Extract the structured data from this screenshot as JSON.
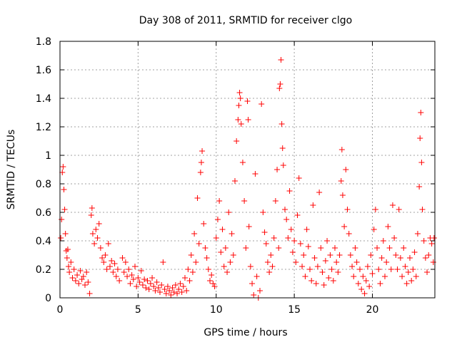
{
  "chart_data": {
    "type": "scatter",
    "title": "Day 308 of 2011, SRMTID for receiver clgo",
    "xlabel": "GPS time / hours",
    "ylabel": "SRMTID / TECUs",
    "xlim": [
      0,
      24
    ],
    "ylim": [
      0,
      1.8
    ],
    "xticks": [
      0,
      5,
      10,
      15,
      20
    ],
    "yticks": [
      0,
      0.2,
      0.4,
      0.6,
      0.8,
      1,
      1.2,
      1.4,
      1.6,
      1.8
    ],
    "xtick_labels": [
      "0",
      "5",
      "10",
      "15",
      "20"
    ],
    "ytick_labels": [
      "0",
      "0.2",
      "0.4",
      "0.6",
      "0.8",
      "1",
      "1.2",
      "1.4",
      "1.6",
      "1.8"
    ],
    "grid": true,
    "marker": "+",
    "series_color": "#ff0000",
    "series": [
      {
        "name": "SRMTID",
        "points": [
          [
            0.05,
            0.42
          ],
          [
            0.1,
            0.55
          ],
          [
            0.15,
            0.88
          ],
          [
            0.2,
            0.92
          ],
          [
            0.25,
            0.76
          ],
          [
            0.3,
            0.62
          ],
          [
            0.35,
            0.45
          ],
          [
            0.4,
            0.33
          ],
          [
            0.45,
            0.28
          ],
          [
            0.5,
            0.34
          ],
          [
            0.55,
            0.22
          ],
          [
            0.6,
            0.18
          ],
          [
            0.7,
            0.25
          ],
          [
            0.8,
            0.14
          ],
          [
            0.9,
            0.2
          ],
          [
            1.0,
            0.12
          ],
          [
            1.1,
            0.16
          ],
          [
            1.2,
            0.1
          ],
          [
            1.3,
            0.19
          ],
          [
            1.4,
            0.13
          ],
          [
            1.5,
            0.15
          ],
          [
            1.6,
            0.09
          ],
          [
            1.7,
            0.18
          ],
          [
            1.8,
            0.11
          ],
          [
            1.9,
            0.03
          ],
          [
            2.0,
            0.58
          ],
          [
            2.05,
            0.63
          ],
          [
            2.1,
            0.45
          ],
          [
            2.2,
            0.38
          ],
          [
            2.3,
            0.48
          ],
          [
            2.4,
            0.42
          ],
          [
            2.5,
            0.52
          ],
          [
            2.6,
            0.35
          ],
          [
            2.7,
            0.28
          ],
          [
            2.8,
            0.25
          ],
          [
            2.9,
            0.3
          ],
          [
            3.0,
            0.2
          ],
          [
            3.1,
            0.38
          ],
          [
            3.2,
            0.22
          ],
          [
            3.3,
            0.26
          ],
          [
            3.4,
            0.18
          ],
          [
            3.5,
            0.24
          ],
          [
            3.6,
            0.15
          ],
          [
            3.7,
            0.2
          ],
          [
            3.8,
            0.12
          ],
          [
            4.0,
            0.28
          ],
          [
            4.1,
            0.18
          ],
          [
            4.2,
            0.25
          ],
          [
            4.3,
            0.15
          ],
          [
            4.4,
            0.2
          ],
          [
            4.5,
            0.1
          ],
          [
            4.6,
            0.16
          ],
          [
            4.7,
            0.13
          ],
          [
            4.8,
            0.22
          ],
          [
            4.9,
            0.08
          ],
          [
            5.0,
            0.14
          ],
          [
            5.1,
            0.11
          ],
          [
            5.2,
            0.19
          ],
          [
            5.3,
            0.09
          ],
          [
            5.4,
            0.13
          ],
          [
            5.5,
            0.07
          ],
          [
            5.6,
            0.12
          ],
          [
            5.7,
            0.06
          ],
          [
            5.8,
            0.1
          ],
          [
            5.9,
            0.14
          ],
          [
            6.0,
            0.08
          ],
          [
            6.1,
            0.05
          ],
          [
            6.2,
            0.11
          ],
          [
            6.3,
            0.07
          ],
          [
            6.4,
            0.04
          ],
          [
            6.5,
            0.09
          ],
          [
            6.6,
            0.25
          ],
          [
            6.7,
            0.06
          ],
          [
            6.8,
            0.03
          ],
          [
            6.9,
            0.08
          ],
          [
            7.0,
            0.05
          ],
          [
            7.1,
            0.02
          ],
          [
            7.2,
            0.07
          ],
          [
            7.3,
            0.04
          ],
          [
            7.4,
            0.09
          ],
          [
            7.5,
            0.03
          ],
          [
            7.6,
            0.06
          ],
          [
            7.7,
            0.1
          ],
          [
            7.8,
            0.04
          ],
          [
            7.9,
            0.08
          ],
          [
            8.0,
            0.14
          ],
          [
            8.1,
            0.05
          ],
          [
            8.2,
            0.2
          ],
          [
            8.3,
            0.12
          ],
          [
            8.4,
            0.3
          ],
          [
            8.5,
            0.18
          ],
          [
            8.6,
            0.45
          ],
          [
            8.7,
            0.25
          ],
          [
            8.8,
            0.7
          ],
          [
            8.9,
            0.38
          ],
          [
            9.0,
            0.88
          ],
          [
            9.05,
            0.95
          ],
          [
            9.1,
            1.03
          ],
          [
            9.2,
            0.52
          ],
          [
            9.3,
            0.35
          ],
          [
            9.4,
            0.28
          ],
          [
            9.5,
            0.2
          ],
          [
            9.6,
            0.12
          ],
          [
            9.7,
            0.16
          ],
          [
            9.8,
            0.1
          ],
          [
            9.9,
            0.08
          ],
          [
            10.0,
            0.42
          ],
          [
            10.1,
            0.55
          ],
          [
            10.2,
            0.68
          ],
          [
            10.3,
            0.32
          ],
          [
            10.4,
            0.48
          ],
          [
            10.5,
            0.22
          ],
          [
            10.6,
            0.35
          ],
          [
            10.7,
            0.18
          ],
          [
            10.8,
            0.6
          ],
          [
            10.9,
            0.25
          ],
          [
            11.0,
            0.45
          ],
          [
            11.1,
            0.3
          ],
          [
            11.2,
            0.82
          ],
          [
            11.3,
            1.1
          ],
          [
            11.4,
            1.25
          ],
          [
            11.45,
            1.35
          ],
          [
            11.5,
            1.44
          ],
          [
            11.55,
            1.4
          ],
          [
            11.6,
            1.22
          ],
          [
            11.7,
            0.95
          ],
          [
            11.8,
            0.68
          ],
          [
            11.9,
            0.35
          ],
          [
            12.0,
            1.38
          ],
          [
            12.05,
            1.25
          ],
          [
            12.1,
            0.5
          ],
          [
            12.2,
            0.22
          ],
          [
            12.3,
            0.1
          ],
          [
            12.4,
            0.02
          ],
          [
            12.5,
            0.87
          ],
          [
            12.6,
            0.15
          ],
          [
            12.7,
            0.0
          ],
          [
            12.8,
            0.05
          ],
          [
            12.9,
            1.36
          ],
          [
            13.0,
            0.6
          ],
          [
            13.1,
            0.46
          ],
          [
            13.2,
            0.38
          ],
          [
            13.3,
            0.25
          ],
          [
            13.4,
            0.18
          ],
          [
            13.5,
            0.3
          ],
          [
            13.6,
            0.22
          ],
          [
            13.7,
            0.42
          ],
          [
            13.8,
            0.68
          ],
          [
            13.9,
            0.9
          ],
          [
            14.0,
            0.35
          ],
          [
            14.05,
            1.47
          ],
          [
            14.1,
            1.5
          ],
          [
            14.15,
            1.67
          ],
          [
            14.2,
            1.22
          ],
          [
            14.25,
            1.05
          ],
          [
            14.3,
            0.93
          ],
          [
            14.4,
            0.62
          ],
          [
            14.5,
            0.55
          ],
          [
            14.6,
            0.42
          ],
          [
            14.7,
            0.75
          ],
          [
            14.8,
            0.48
          ],
          [
            14.9,
            0.32
          ],
          [
            15.0,
            0.4
          ],
          [
            15.1,
            0.25
          ],
          [
            15.2,
            0.58
          ],
          [
            15.3,
            0.84
          ],
          [
            15.4,
            0.38
          ],
          [
            15.5,
            0.22
          ],
          [
            15.6,
            0.3
          ],
          [
            15.7,
            0.15
          ],
          [
            15.8,
            0.48
          ],
          [
            15.9,
            0.36
          ],
          [
            16.0,
            0.2
          ],
          [
            16.1,
            0.12
          ],
          [
            16.2,
            0.65
          ],
          [
            16.3,
            0.28
          ],
          [
            16.4,
            0.1
          ],
          [
            16.5,
            0.22
          ],
          [
            16.6,
            0.74
          ],
          [
            16.7,
            0.35
          ],
          [
            16.8,
            0.18
          ],
          [
            16.9,
            0.09
          ],
          [
            17.0,
            0.26
          ],
          [
            17.1,
            0.4
          ],
          [
            17.2,
            0.14
          ],
          [
            17.3,
            0.3
          ],
          [
            17.4,
            0.2
          ],
          [
            17.5,
            0.12
          ],
          [
            17.6,
            0.35
          ],
          [
            17.7,
            0.25
          ],
          [
            17.8,
            0.18
          ],
          [
            17.9,
            0.3
          ],
          [
            18.0,
            0.82
          ],
          [
            18.05,
            1.04
          ],
          [
            18.1,
            0.72
          ],
          [
            18.2,
            0.5
          ],
          [
            18.3,
            0.9
          ],
          [
            18.4,
            0.62
          ],
          [
            18.5,
            0.45
          ],
          [
            18.6,
            0.3
          ],
          [
            18.7,
            0.22
          ],
          [
            18.8,
            0.15
          ],
          [
            18.9,
            0.35
          ],
          [
            19.0,
            0.25
          ],
          [
            19.1,
            0.1
          ],
          [
            19.2,
            0.2
          ],
          [
            19.3,
            0.06
          ],
          [
            19.4,
            0.15
          ],
          [
            19.5,
            0.03
          ],
          [
            19.6,
            0.12
          ],
          [
            19.7,
            0.22
          ],
          [
            19.8,
            0.08
          ],
          [
            19.9,
            0.3
          ],
          [
            20.0,
            0.17
          ],
          [
            20.1,
            0.48
          ],
          [
            20.2,
            0.62
          ],
          [
            20.3,
            0.35
          ],
          [
            20.4,
            0.2
          ],
          [
            20.5,
            0.1
          ],
          [
            20.6,
            0.28
          ],
          [
            20.7,
            0.4
          ],
          [
            20.8,
            0.15
          ],
          [
            20.9,
            0.25
          ],
          [
            21.0,
            0.5
          ],
          [
            21.1,
            0.35
          ],
          [
            21.2,
            0.2
          ],
          [
            21.3,
            0.65
          ],
          [
            21.4,
            0.42
          ],
          [
            21.5,
            0.3
          ],
          [
            21.6,
            0.2
          ],
          [
            21.7,
            0.62
          ],
          [
            21.8,
            0.28
          ],
          [
            21.9,
            0.15
          ],
          [
            22.0,
            0.35
          ],
          [
            22.1,
            0.22
          ],
          [
            22.2,
            0.1
          ],
          [
            22.3,
            0.18
          ],
          [
            22.4,
            0.28
          ],
          [
            22.5,
            0.12
          ],
          [
            22.6,
            0.2
          ],
          [
            22.7,
            0.32
          ],
          [
            22.8,
            0.15
          ],
          [
            22.9,
            0.45
          ],
          [
            23.0,
            0.78
          ],
          [
            23.05,
            1.12
          ],
          [
            23.1,
            1.3
          ],
          [
            23.15,
            0.95
          ],
          [
            23.2,
            0.62
          ],
          [
            23.3,
            0.4
          ],
          [
            23.4,
            0.28
          ],
          [
            23.5,
            0.18
          ],
          [
            23.6,
            0.3
          ],
          [
            23.7,
            0.42
          ],
          [
            23.8,
            0.38
          ],
          [
            23.9,
            0.25
          ],
          [
            23.95,
            0.42
          ]
        ]
      }
    ]
  }
}
